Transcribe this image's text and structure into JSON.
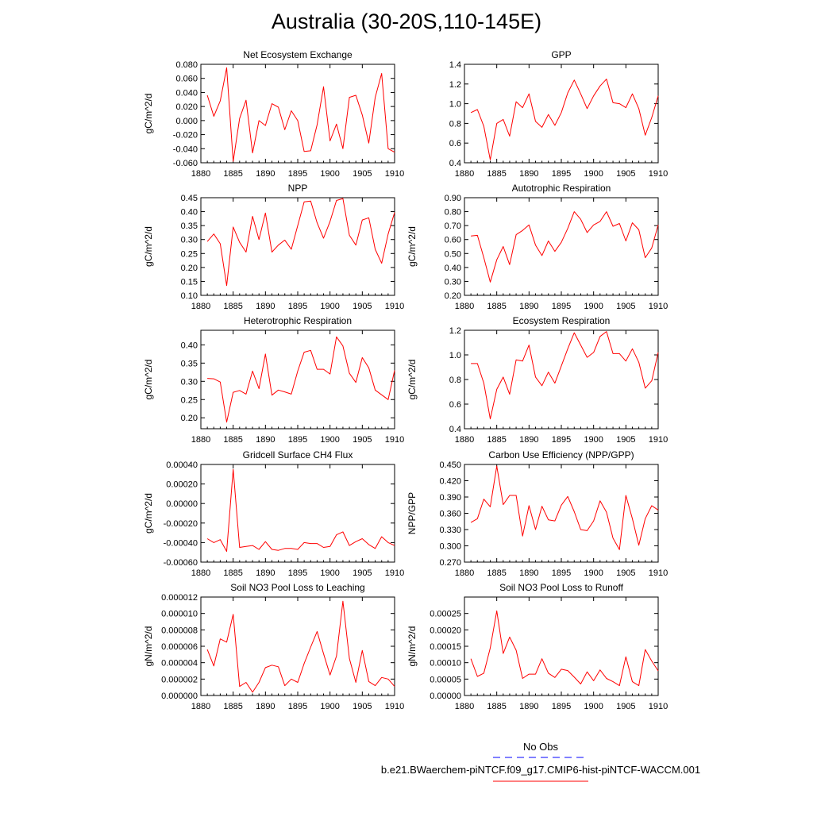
{
  "title": "Australia (30-20S,110-145E)",
  "colors": {
    "series": "#ff0000",
    "obs_dash": "#0000ff",
    "axis": "#000000"
  },
  "legend": {
    "obs_label": "No Obs",
    "model_label": "b.e21.BWaerchem-piNTCF.f09_g17.CMIP6-hist-piNTCF-WACCM.001"
  },
  "chart_data": [
    {
      "type": "line",
      "title": "Net Ecosystem Exchange",
      "ylabel": "gC/m^2/d",
      "xlim": [
        1880,
        1910
      ],
      "xticks": [
        "1880",
        "1885",
        "1890",
        "1895",
        "1900",
        "1905",
        "1910"
      ],
      "ylim": [
        -0.06,
        0.08
      ],
      "yticks": [
        "-0.060",
        "-0.040",
        "-0.020",
        "0.000",
        "0.020",
        "0.040",
        "0.060",
        "0.080"
      ],
      "series": [
        {
          "x": [
            1881,
            1882,
            1883,
            1884,
            1885,
            1886,
            1887,
            1888,
            1889,
            1890,
            1891,
            1892,
            1893,
            1894,
            1895,
            1896,
            1897,
            1898,
            1899,
            1900,
            1901,
            1902,
            1903,
            1904,
            1905,
            1906,
            1907,
            1908,
            1909,
            1910
          ],
          "values": [
            0.036,
            0.006,
            0.028,
            0.075,
            -0.058,
            0.003,
            0.029,
            -0.046,
            0.0,
            -0.007,
            0.024,
            0.019,
            -0.013,
            0.014,
            0.0,
            -0.044,
            -0.043,
            -0.006,
            0.048,
            -0.029,
            -0.005,
            -0.04,
            0.033,
            0.036,
            0.008,
            -0.032,
            0.033,
            0.067,
            -0.04,
            -0.045
          ]
        }
      ]
    },
    {
      "type": "line",
      "title": "GPP",
      "ylabel": "",
      "xlim": [
        1880,
        1910
      ],
      "xticks": [
        "1880",
        "1885",
        "1890",
        "1895",
        "1900",
        "1905",
        "1910"
      ],
      "ylim": [
        0.4,
        1.4
      ],
      "yticks": [
        "0.4",
        "0.6",
        "0.8",
        "1.0",
        "1.2",
        "1.4"
      ],
      "series": [
        {
          "x": [
            1881,
            1882,
            1883,
            1884,
            1885,
            1886,
            1887,
            1888,
            1889,
            1890,
            1891,
            1892,
            1893,
            1894,
            1895,
            1896,
            1897,
            1898,
            1899,
            1900,
            1901,
            1902,
            1903,
            1904,
            1905,
            1906,
            1907,
            1908,
            1909,
            1910
          ],
          "values": [
            0.91,
            0.94,
            0.77,
            0.43,
            0.8,
            0.84,
            0.67,
            1.02,
            0.96,
            1.1,
            0.82,
            0.76,
            0.89,
            0.78,
            0.91,
            1.11,
            1.24,
            1.1,
            0.95,
            1.08,
            1.18,
            1.25,
            1.01,
            1.0,
            0.96,
            1.1,
            0.95,
            0.68,
            0.86,
            1.08
          ]
        }
      ]
    },
    {
      "type": "line",
      "title": "NPP",
      "ylabel": "gC/m^2/d",
      "xlim": [
        1880,
        1910
      ],
      "xticks": [
        "1880",
        "1885",
        "1890",
        "1895",
        "1900",
        "1905",
        "1910"
      ],
      "ylim": [
        0.1,
        0.45
      ],
      "yticks": [
        "0.10",
        "0.15",
        "0.20",
        "0.25",
        "0.30",
        "0.35",
        "0.40",
        "0.45"
      ],
      "series": [
        {
          "x": [
            1881,
            1882,
            1883,
            1884,
            1885,
            1886,
            1887,
            1888,
            1889,
            1890,
            1891,
            1892,
            1893,
            1894,
            1895,
            1896,
            1897,
            1898,
            1899,
            1900,
            1901,
            1902,
            1903,
            1904,
            1905,
            1906,
            1907,
            1908,
            1909,
            1910
          ],
          "values": [
            0.293,
            0.32,
            0.285,
            0.135,
            0.345,
            0.29,
            0.255,
            0.383,
            0.3,
            0.395,
            0.255,
            0.28,
            0.298,
            0.265,
            0.35,
            0.435,
            0.438,
            0.36,
            0.305,
            0.365,
            0.44,
            0.447,
            0.315,
            0.28,
            0.37,
            0.378,
            0.265,
            0.215,
            0.32,
            0.397
          ]
        }
      ]
    },
    {
      "type": "line",
      "title": "Autotrophic Respiration",
      "ylabel": "gC/m^2/d",
      "xlim": [
        1880,
        1910
      ],
      "xticks": [
        "1880",
        "1885",
        "1890",
        "1895",
        "1900",
        "1905",
        "1910"
      ],
      "ylim": [
        0.2,
        0.9
      ],
      "yticks": [
        "0.20",
        "0.30",
        "0.40",
        "0.50",
        "0.60",
        "0.70",
        "0.80",
        "0.90"
      ],
      "series": [
        {
          "x": [
            1881,
            1882,
            1883,
            1884,
            1885,
            1886,
            1887,
            1888,
            1889,
            1890,
            1891,
            1892,
            1893,
            1894,
            1895,
            1896,
            1897,
            1898,
            1899,
            1900,
            1901,
            1902,
            1903,
            1904,
            1905,
            1906,
            1907,
            1908,
            1909,
            1910
          ],
          "values": [
            0.625,
            0.63,
            0.47,
            0.295,
            0.455,
            0.55,
            0.42,
            0.635,
            0.665,
            0.705,
            0.56,
            0.485,
            0.59,
            0.515,
            0.58,
            0.68,
            0.8,
            0.745,
            0.65,
            0.705,
            0.73,
            0.8,
            0.695,
            0.715,
            0.59,
            0.72,
            0.67,
            0.47,
            0.54,
            0.705
          ]
        }
      ]
    },
    {
      "type": "line",
      "title": "Heterotrophic Respiration",
      "ylabel": "gC/m^2/d",
      "xlim": [
        1880,
        1910
      ],
      "xticks": [
        "1880",
        "1885",
        "1890",
        "1895",
        "1900",
        "1905",
        "1910"
      ],
      "ylim": [
        0.17,
        0.44
      ],
      "yticks": [
        "0.20",
        "0.25",
        "0.30",
        "0.35",
        "0.40"
      ],
      "series": [
        {
          "x": [
            1881,
            1882,
            1883,
            1884,
            1885,
            1886,
            1887,
            1888,
            1889,
            1890,
            1891,
            1892,
            1893,
            1894,
            1895,
            1896,
            1897,
            1898,
            1899,
            1900,
            1901,
            1902,
            1903,
            1904,
            1905,
            1906,
            1907,
            1908,
            1909,
            1910
          ],
          "values": [
            0.308,
            0.307,
            0.298,
            0.188,
            0.27,
            0.275,
            0.265,
            0.328,
            0.28,
            0.375,
            0.262,
            0.276,
            0.271,
            0.265,
            0.328,
            0.38,
            0.385,
            0.333,
            0.333,
            0.32,
            0.422,
            0.397,
            0.322,
            0.297,
            0.365,
            0.337,
            0.276,
            0.263,
            0.25,
            0.33
          ]
        }
      ]
    },
    {
      "type": "line",
      "title": "Ecosystem Respiration",
      "ylabel": "gC/m^2/d",
      "xlim": [
        1880,
        1910
      ],
      "xticks": [
        "1880",
        "1885",
        "1890",
        "1895",
        "1900",
        "1905",
        "1910"
      ],
      "ylim": [
        0.4,
        1.2
      ],
      "yticks": [
        "0.4",
        "0.6",
        "0.8",
        "1.0",
        "1.2"
      ],
      "series": [
        {
          "x": [
            1881,
            1882,
            1883,
            1884,
            1885,
            1886,
            1887,
            1888,
            1889,
            1890,
            1891,
            1892,
            1893,
            1894,
            1895,
            1896,
            1897,
            1898,
            1899,
            1900,
            1901,
            1902,
            1903,
            1904,
            1905,
            1906,
            1907,
            1908,
            1909,
            1910
          ],
          "values": [
            0.93,
            0.93,
            0.77,
            0.48,
            0.72,
            0.82,
            0.68,
            0.96,
            0.95,
            1.08,
            0.82,
            0.75,
            0.86,
            0.77,
            0.91,
            1.05,
            1.18,
            1.08,
            0.98,
            1.02,
            1.15,
            1.19,
            1.01,
            1.01,
            0.95,
            1.05,
            0.94,
            0.73,
            0.79,
            1.02
          ]
        }
      ]
    },
    {
      "type": "line",
      "title": "Gridcell Surface CH4 Flux",
      "ylabel": "gC/m^2/d",
      "xlim": [
        1880,
        1910
      ],
      "xticks": [
        "1880",
        "1885",
        "1890",
        "1895",
        "1900",
        "1905",
        "1910"
      ],
      "ylim": [
        -0.0006,
        0.0004
      ],
      "yticks": [
        "-0.00060",
        "-0.00040",
        "-0.00020",
        "0.00000",
        "0.00020",
        "0.00040"
      ],
      "series": [
        {
          "x": [
            1881,
            1882,
            1883,
            1884,
            1885,
            1886,
            1887,
            1888,
            1889,
            1890,
            1891,
            1892,
            1893,
            1894,
            1895,
            1896,
            1897,
            1898,
            1899,
            1900,
            1901,
            1902,
            1903,
            1904,
            1905,
            1906,
            1907,
            1908,
            1909,
            1910
          ],
          "values": [
            -0.00036,
            -0.0004,
            -0.00037,
            -0.00049,
            0.00035,
            -0.00045,
            -0.00044,
            -0.00043,
            -0.00047,
            -0.00039,
            -0.00047,
            -0.00048,
            -0.00046,
            -0.00046,
            -0.00047,
            -0.0004,
            -0.00041,
            -0.00041,
            -0.00045,
            -0.00044,
            -0.00032,
            -0.00029,
            -0.00043,
            -0.00039,
            -0.00036,
            -0.00042,
            -0.00046,
            -0.00034,
            -0.0004,
            -0.00043
          ]
        }
      ]
    },
    {
      "type": "line",
      "title": "Carbon Use Efficiency (NPP/GPP)",
      "ylabel": "NPP/GPP",
      "xlim": [
        1880,
        1910
      ],
      "xticks": [
        "1880",
        "1885",
        "1890",
        "1895",
        "1900",
        "1905",
        "1910"
      ],
      "ylim": [
        0.27,
        0.45
      ],
      "yticks": [
        "0.270",
        "0.300",
        "0.330",
        "0.360",
        "0.390",
        "0.420",
        "0.450"
      ],
      "series": [
        {
          "x": [
            1881,
            1882,
            1883,
            1884,
            1885,
            1886,
            1887,
            1888,
            1889,
            1890,
            1891,
            1892,
            1893,
            1894,
            1895,
            1896,
            1897,
            1898,
            1899,
            1900,
            1901,
            1902,
            1903,
            1904,
            1905,
            1906,
            1907,
            1908,
            1909,
            1910
          ],
          "values": [
            0.343,
            0.35,
            0.386,
            0.372,
            0.447,
            0.376,
            0.393,
            0.393,
            0.318,
            0.374,
            0.33,
            0.373,
            0.348,
            0.346,
            0.375,
            0.391,
            0.363,
            0.33,
            0.328,
            0.346,
            0.383,
            0.362,
            0.314,
            0.293,
            0.393,
            0.35,
            0.301,
            0.35,
            0.374,
            0.366
          ]
        }
      ]
    },
    {
      "type": "line",
      "title": "Soil NO3 Pool Loss to Leaching",
      "ylabel": "gN/m^2/d",
      "xlim": [
        1880,
        1910
      ],
      "xticks": [
        "1880",
        "1885",
        "1890",
        "1895",
        "1900",
        "1905",
        "1910"
      ],
      "ylim": [
        0,
        1.2e-05
      ],
      "yticks": [
        "0.000000",
        "0.000002",
        "0.000004",
        "0.000006",
        "0.000008",
        "0.000010",
        "0.000012"
      ],
      "series": [
        {
          "x": [
            1881,
            1882,
            1883,
            1884,
            1885,
            1886,
            1887,
            1888,
            1889,
            1890,
            1891,
            1892,
            1893,
            1894,
            1895,
            1896,
            1897,
            1898,
            1899,
            1900,
            1901,
            1902,
            1903,
            1904,
            1905,
            1906,
            1907,
            1908,
            1909,
            1910
          ],
          "values": [
            5.6e-06,
            3.6e-06,
            6.9e-06,
            6.5e-06,
            9.9e-06,
            1.1e-06,
            1.6e-06,
            4e-07,
            1.6e-06,
            3.4e-06,
            3.7e-06,
            3.5e-06,
            1.2e-06,
            2e-06,
            1.6e-06,
            3.9e-06,
            5.9e-06,
            7.8e-06,
            5.1e-06,
            2.5e-06,
            4.8e-06,
            1.15e-05,
            4.5e-06,
            1.6e-06,
            5.5e-06,
            1.7e-06,
            1.2e-06,
            2.2e-06,
            2e-06,
            1.1e-06
          ]
        }
      ]
    },
    {
      "type": "line",
      "title": "Soil NO3 Pool Loss to Runoff",
      "ylabel": "gN/m^2/d",
      "xlim": [
        1880,
        1910
      ],
      "xticks": [
        "1880",
        "1885",
        "1890",
        "1895",
        "1900",
        "1905",
        "1910"
      ],
      "ylim": [
        0,
        0.0003
      ],
      "yticks": [
        "0.00000",
        "0.00005",
        "0.00010",
        "0.00015",
        "0.00020",
        "0.00025"
      ],
      "series": [
        {
          "x": [
            1881,
            1882,
            1883,
            1884,
            1885,
            1886,
            1887,
            1888,
            1889,
            1890,
            1891,
            1892,
            1893,
            1894,
            1895,
            1896,
            1897,
            1898,
            1899,
            1900,
            1901,
            1902,
            1903,
            1904,
            1905,
            1906,
            1907,
            1908,
            1909,
            1910
          ],
          "values": [
            0.000112,
            5.8e-05,
            6.8e-05,
            0.000145,
            0.000258,
            0.000128,
            0.000178,
            0.000138,
            5.2e-05,
            6.5e-05,
            6.5e-05,
            0.000112,
            6.8e-05,
            5.5e-05,
            8e-05,
            7.6e-05,
            5.6e-05,
            3.5e-05,
            7.2e-05,
            4.5e-05,
            7.8e-05,
            5.2e-05,
            4.2e-05,
            3e-05,
            0.000118,
            4.2e-05,
            3e-05,
            0.00014,
            0.000105,
            7.5e-05
          ]
        }
      ]
    }
  ]
}
